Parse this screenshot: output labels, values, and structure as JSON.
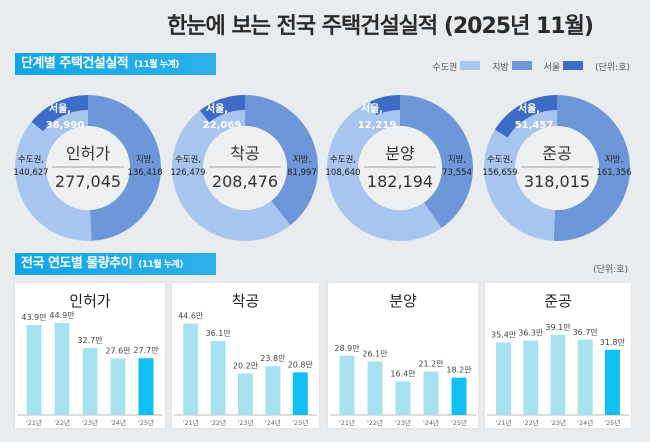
{
  "title": "한눈에 보는 전국 주택건설실적 (2025년 11월)",
  "section1": {
    "label": "단계별 주택건설실적",
    "sub": "(11월 누계)"
  },
  "section2": {
    "label": "전국 연도별 물량추이",
    "sub": "(11월 누계)"
  },
  "legend": {
    "items": [
      {
        "label": "수도권",
        "color": "#a7c5ee"
      },
      {
        "label": "지방",
        "color": "#6e97d9"
      },
      {
        "label": "서울",
        "color": "#3d6cc6"
      }
    ],
    "unit": "(단위:호)"
  },
  "unit2": "(단위:호)",
  "chart_data": [
    {
      "type": "pie",
      "title": "인허가",
      "total": "277,045",
      "slices": [
        {
          "name": "지방",
          "value": 136418,
          "label": "136,418"
        },
        {
          "name": "수도권",
          "value": 140627,
          "label": "140,627"
        },
        {
          "name": "서울",
          "value": 38990,
          "label": "38,990"
        }
      ]
    },
    {
      "type": "pie",
      "title": "착공",
      "total": "208,476",
      "slices": [
        {
          "name": "지방",
          "value": 81997,
          "label": "81,997"
        },
        {
          "name": "수도권",
          "value": 126479,
          "label": "126,479"
        },
        {
          "name": "서울",
          "value": 22069,
          "label": "22,069"
        }
      ]
    },
    {
      "type": "pie",
      "title": "분양",
      "total": "182,194",
      "slices": [
        {
          "name": "지방",
          "value": 73554,
          "label": "73,554"
        },
        {
          "name": "수도권",
          "value": 108640,
          "label": "108,640"
        },
        {
          "name": "서울",
          "value": 12219,
          "label": "12,219"
        }
      ]
    },
    {
      "type": "pie",
      "title": "준공",
      "total": "318,015",
      "slices": [
        {
          "name": "지방",
          "value": 161356,
          "label": "161,356"
        },
        {
          "name": "수도권",
          "value": 156659,
          "label": "156,659"
        },
        {
          "name": "서울",
          "value": 51457,
          "label": "51,457"
        }
      ]
    },
    {
      "type": "bar",
      "title": "인허가",
      "categories": [
        "'21년",
        "'22년",
        "'23년",
        "'24년",
        "'25년"
      ],
      "values": [
        43.9,
        44.9,
        32.7,
        27.6,
        27.7
      ],
      "labels": [
        "43.9만",
        "44.9만",
        "32.7만",
        "27.6만",
        "27.7만"
      ]
    },
    {
      "type": "bar",
      "title": "착공",
      "categories": [
        "'21년",
        "'22년",
        "'23년",
        "'24년",
        "'25년"
      ],
      "values": [
        44.6,
        36.1,
        20.2,
        23.8,
        20.8
      ],
      "labels": [
        "44.6만",
        "36.1만",
        "20.2만",
        "23.8만",
        "20.8만"
      ]
    },
    {
      "type": "bar",
      "title": "분양",
      "categories": [
        "'21년",
        "'22년",
        "'23년",
        "'24년",
        "'25년"
      ],
      "values": [
        28.9,
        26.1,
        16.4,
        21.2,
        18.2
      ],
      "labels": [
        "28.9만",
        "26.1만",
        "16.4만",
        "21.2만",
        "18.2만"
      ]
    },
    {
      "type": "bar",
      "title": "준공",
      "categories": [
        "'21년",
        "'22년",
        "'23년",
        "'24년",
        "'25년"
      ],
      "values": [
        35.4,
        36.3,
        39.1,
        36.7,
        31.8
      ],
      "labels": [
        "35.4만",
        "36.3만",
        "39.1만",
        "36.7만",
        "31.8만"
      ]
    }
  ],
  "colors": {
    "bar": "#a8e2f0",
    "bar_current": "#12c0f3"
  }
}
